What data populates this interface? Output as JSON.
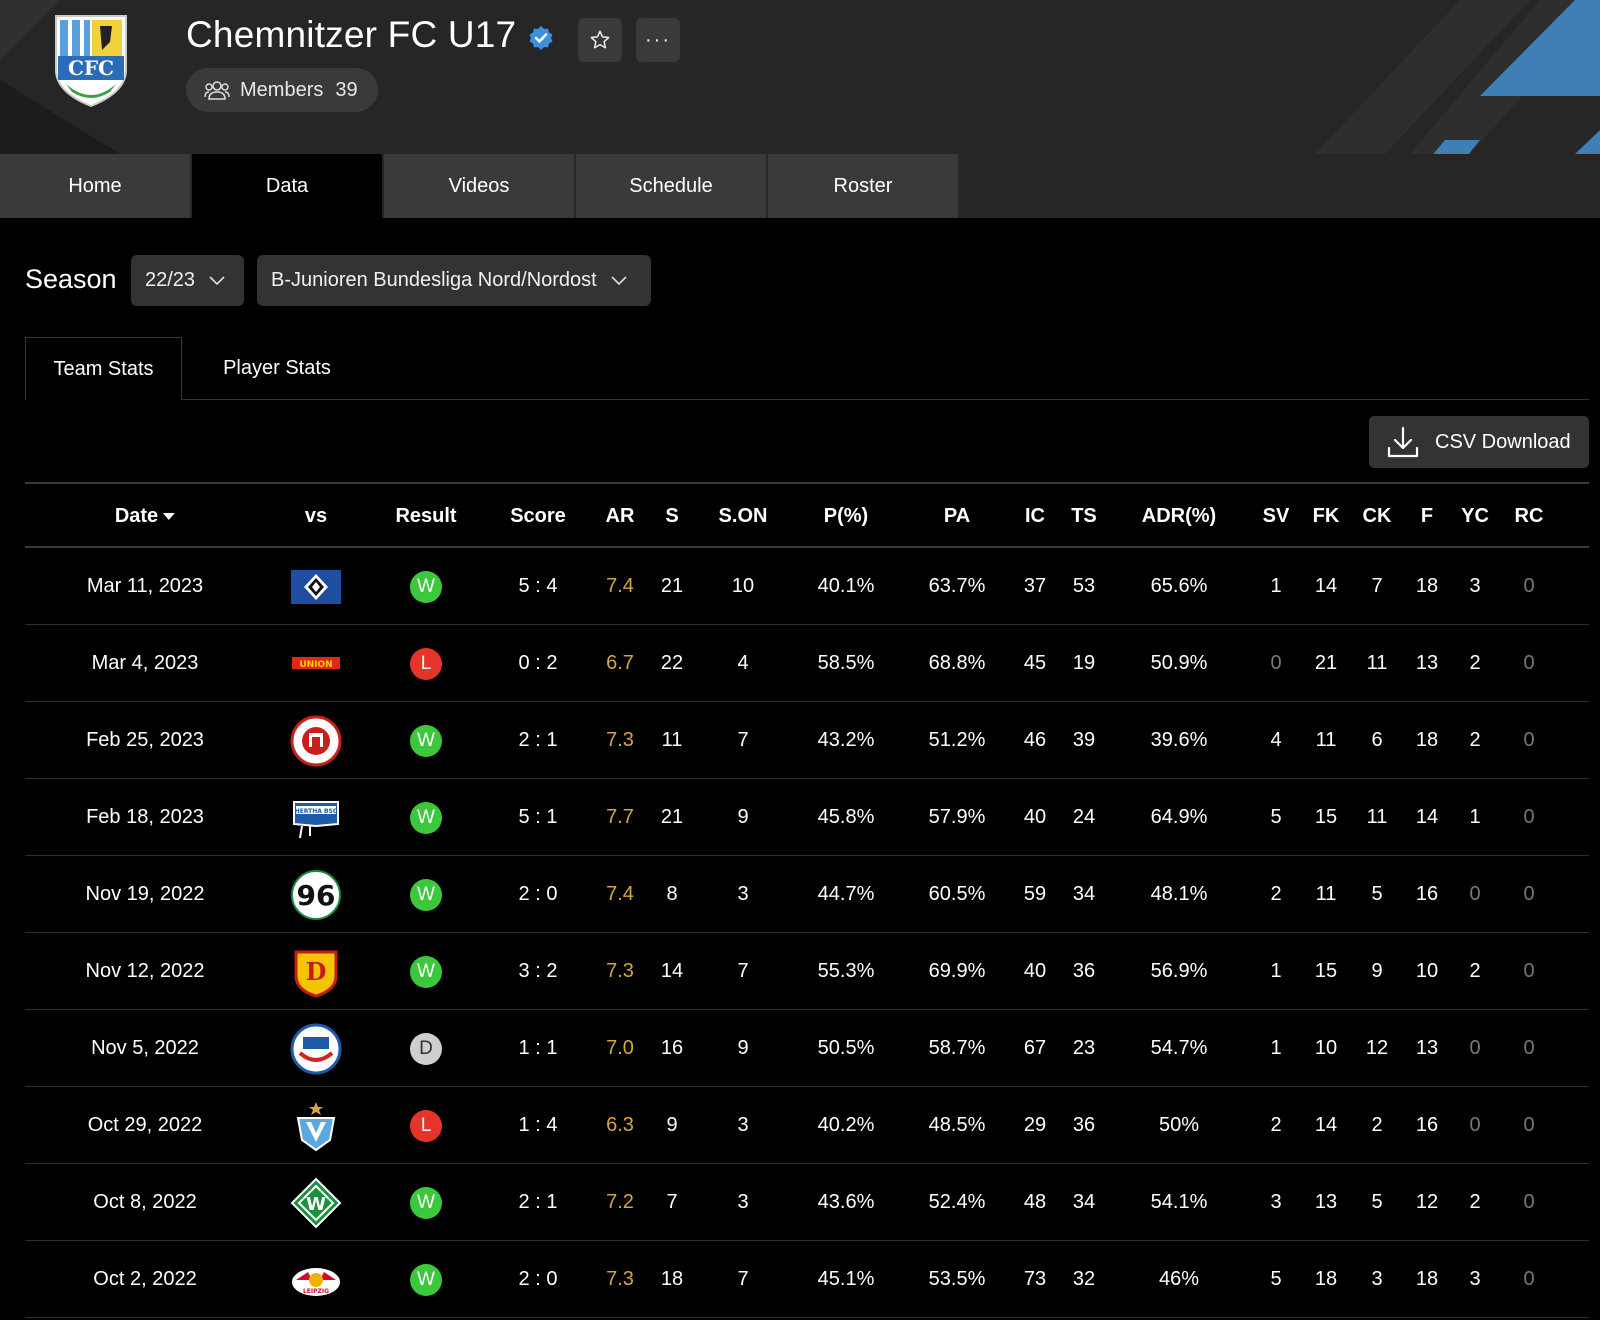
{
  "header": {
    "team_name": "Chemnitzer FC U17",
    "logo_text": "CFC",
    "members_label": "Members",
    "members_count": "39",
    "more_label": "···"
  },
  "nav": {
    "tabs": [
      {
        "label": "Home",
        "active": false
      },
      {
        "label": "Data",
        "active": true
      },
      {
        "label": "Videos",
        "active": false
      },
      {
        "label": "Schedule",
        "active": false
      },
      {
        "label": "Roster",
        "active": false
      }
    ]
  },
  "filters": {
    "season_label": "Season",
    "season_value": "22/23",
    "league_value": "B-Junioren Bundesliga Nord/Nordost"
  },
  "subtabs": {
    "team_stats": "Team Stats",
    "player_stats": "Player Stats"
  },
  "csv_label": "CSV Download",
  "colors": {
    "accent_blue": "#3f7fb5",
    "win": "#3cc83c",
    "loss": "#e5352b",
    "draw": "#cfcfcf",
    "rating": "#d4a73c"
  },
  "table": {
    "columns": [
      "Date",
      "vs",
      "Result",
      "Score",
      "AR",
      "S",
      "S.ON",
      "P(%)",
      "PA",
      "IC",
      "TS",
      "ADR(%)",
      "SV",
      "FK",
      "CK",
      "F",
      "YC",
      "RC"
    ],
    "rows": [
      {
        "date": "Mar 11, 2023",
        "crest": "hamburger-sv-icon",
        "result": "W",
        "score": "5 : 4",
        "ar": "7.4",
        "s": "21",
        "son": "10",
        "p": "40.1%",
        "pa": "63.7%",
        "ic": "37",
        "ts": "53",
        "adr": "65.6%",
        "sv": "1",
        "fk": "14",
        "ck": "7",
        "f": "18",
        "yc": "3",
        "rc": "0"
      },
      {
        "date": "Mar 4, 2023",
        "crest": "union-berlin-icon",
        "result": "L",
        "score": "0 : 2",
        "ar": "6.7",
        "s": "22",
        "son": "4",
        "p": "58.5%",
        "pa": "68.8%",
        "ic": "45",
        "ts": "19",
        "adr": "50.9%",
        "sv": "0",
        "fk": "21",
        "ck": "11",
        "f": "13",
        "yc": "2",
        "rc": "0"
      },
      {
        "date": "Feb 25, 2023",
        "crest": "st-pauli-icon",
        "result": "W",
        "score": "2 : 1",
        "ar": "7.3",
        "s": "11",
        "son": "7",
        "p": "43.2%",
        "pa": "51.2%",
        "ic": "46",
        "ts": "39",
        "adr": "39.6%",
        "sv": "4",
        "fk": "11",
        "ck": "6",
        "f": "18",
        "yc": "2",
        "rc": "0"
      },
      {
        "date": "Feb 18, 2023",
        "crest": "hertha-bsc-icon",
        "result": "W",
        "score": "5 : 1",
        "ar": "7.7",
        "s": "21",
        "son": "9",
        "p": "45.8%",
        "pa": "57.9%",
        "ic": "40",
        "ts": "24",
        "adr": "64.9%",
        "sv": "5",
        "fk": "15",
        "ck": "11",
        "f": "14",
        "yc": "1",
        "rc": "0"
      },
      {
        "date": "Nov 19, 2022",
        "crest": "hannover-96-icon",
        "result": "W",
        "score": "2 : 0",
        "ar": "7.4",
        "s": "8",
        "son": "3",
        "p": "44.7%",
        "pa": "60.5%",
        "ic": "59",
        "ts": "34",
        "adr": "48.1%",
        "sv": "2",
        "fk": "11",
        "ck": "5",
        "f": "16",
        "yc": "0",
        "rc": "0"
      },
      {
        "date": "Nov 12, 2022",
        "crest": "dynamo-dresden-icon",
        "result": "W",
        "score": "3 : 2",
        "ar": "7.3",
        "s": "14",
        "son": "7",
        "p": "55.3%",
        "pa": "69.9%",
        "ic": "40",
        "ts": "36",
        "adr": "56.9%",
        "sv": "1",
        "fk": "15",
        "ck": "9",
        "f": "10",
        "yc": "2",
        "rc": "0"
      },
      {
        "date": "Nov 5, 2022",
        "crest": "hansa-rostock-icon",
        "result": "D",
        "score": "1 : 1",
        "ar": "7.0",
        "s": "16",
        "son": "9",
        "p": "50.5%",
        "pa": "58.7%",
        "ic": "67",
        "ts": "23",
        "adr": "54.7%",
        "sv": "1",
        "fk": "10",
        "ck": "12",
        "f": "13",
        "yc": "0",
        "rc": "0"
      },
      {
        "date": "Oct 29, 2022",
        "crest": "viktoria-berlin-icon",
        "result": "L",
        "score": "1 : 4",
        "ar": "6.3",
        "s": "9",
        "son": "3",
        "p": "40.2%",
        "pa": "48.5%",
        "ic": "29",
        "ts": "36",
        "adr": "50%",
        "sv": "2",
        "fk": "14",
        "ck": "2",
        "f": "16",
        "yc": "0",
        "rc": "0"
      },
      {
        "date": "Oct 8, 2022",
        "crest": "werder-bremen-icon",
        "result": "W",
        "score": "2 : 1",
        "ar": "7.2",
        "s": "7",
        "son": "3",
        "p": "43.6%",
        "pa": "52.4%",
        "ic": "48",
        "ts": "34",
        "adr": "54.1%",
        "sv": "3",
        "fk": "13",
        "ck": "5",
        "f": "12",
        "yc": "2",
        "rc": "0"
      },
      {
        "date": "Oct 2, 2022",
        "crest": "rb-leipzig-icon",
        "result": "W",
        "score": "2 : 0",
        "ar": "7.3",
        "s": "18",
        "son": "7",
        "p": "45.1%",
        "pa": "53.5%",
        "ic": "73",
        "ts": "32",
        "adr": "46%",
        "sv": "5",
        "fk": "18",
        "ck": "3",
        "f": "18",
        "yc": "3",
        "rc": "0"
      }
    ]
  }
}
